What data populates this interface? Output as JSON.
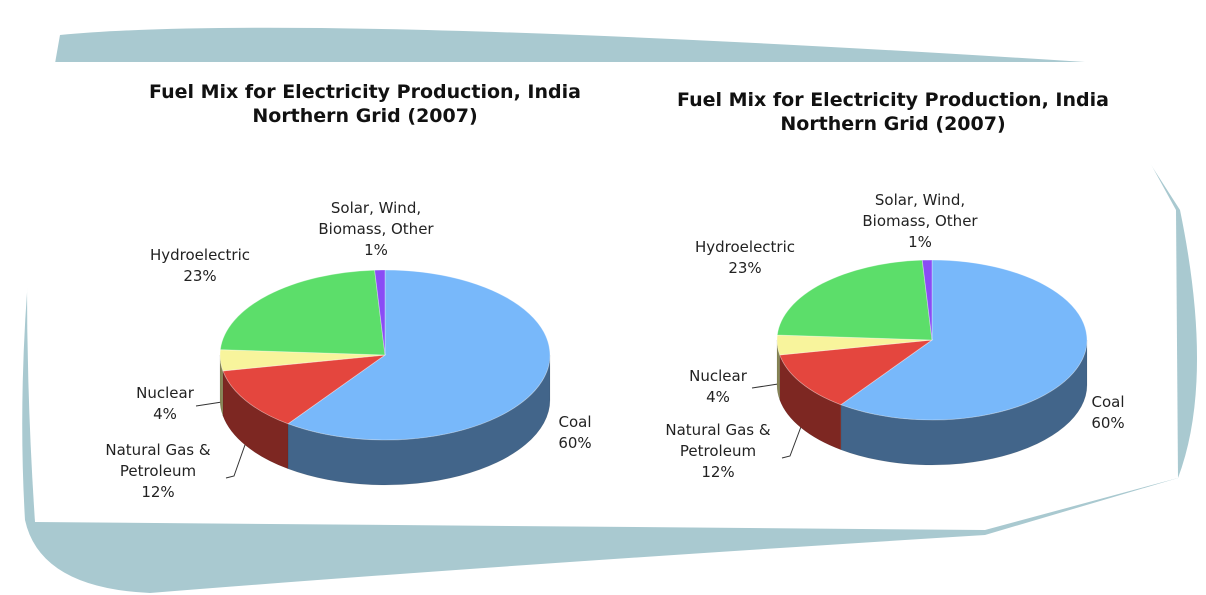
{
  "chart_data": [
    {
      "type": "pie",
      "title": "Fuel Mix for Electricity Production, India Northern Grid (2007)",
      "categories": [
        "Coal",
        "Natural Gas & Petroleum",
        "Nuclear",
        "Hydroelectric",
        "Solar, Wind, Biomass, Other"
      ],
      "values": [
        60,
        12,
        4,
        23,
        1
      ],
      "value_labels": [
        "60%",
        "12%",
        "4%",
        "23%",
        "1%"
      ],
      "colors": [
        "#78b8fa",
        "#e4463e",
        "#f8f49c",
        "#5cde6a",
        "#8a4cf5"
      ]
    },
    {
      "type": "pie",
      "title": "Fuel Mix for Electricity Production, India Northern Grid (2007)",
      "categories": [
        "Coal",
        "Natural Gas & Petroleum",
        "Nuclear",
        "Hydroelectric",
        "Solar, Wind, Biomass, Other"
      ],
      "values": [
        60,
        12,
        4,
        23,
        1
      ],
      "value_labels": [
        "60%",
        "12%",
        "4%",
        "23%",
        "1%"
      ],
      "colors": [
        "#78b8fa",
        "#e4463e",
        "#f8f49c",
        "#5cde6a",
        "#8a4cf5"
      ]
    }
  ]
}
